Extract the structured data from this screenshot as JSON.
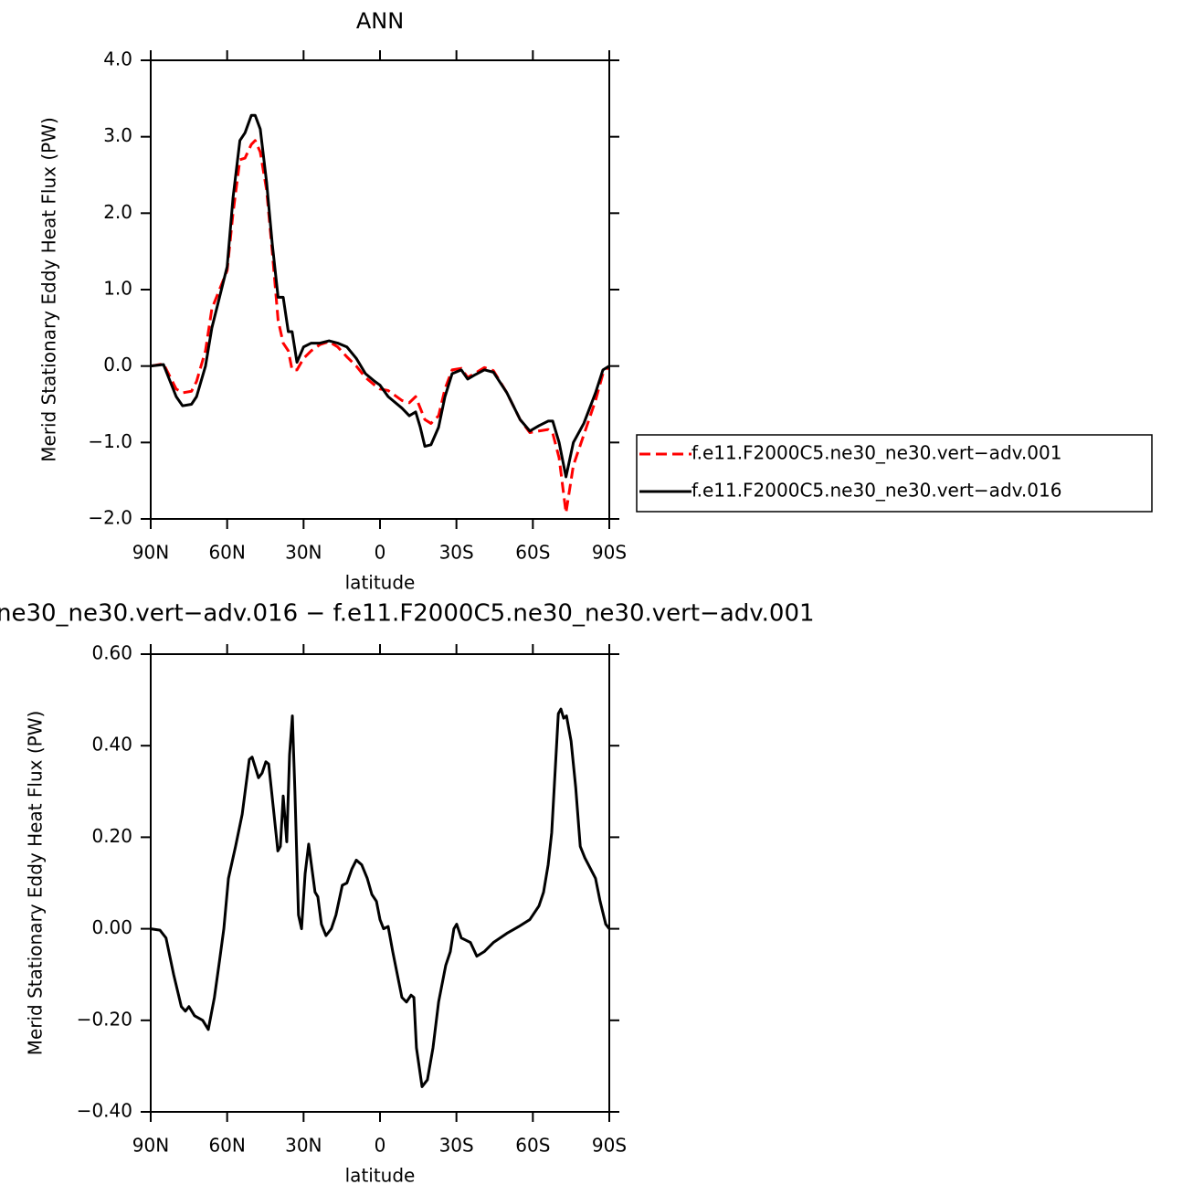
{
  "chart_data": [
    {
      "type": "line",
      "title": "ANN",
      "xlabel": "latitude",
      "ylabel": "Merid Stationary Eddy Heat Flux (PW)",
      "x": [
        90,
        85,
        80,
        77.5,
        74,
        72,
        68.5,
        66,
        63,
        60,
        57.7,
        55,
        53,
        50.5,
        49,
        47,
        44.5,
        42.3,
        40,
        38,
        36,
        34.5,
        32.6,
        30,
        27,
        23.6,
        20,
        16.6,
        13,
        9.3,
        5.7,
        2.1,
        0,
        -3.2,
        -8.6,
        -11.5,
        -14,
        -15.8,
        -17.6,
        -20,
        -23,
        -25.5,
        -28.3,
        -31.9,
        -34.4,
        -37,
        -41,
        -44.5,
        -49.8,
        -55,
        -58.8,
        -62.4,
        -66,
        -67.8,
        -70.3,
        -73,
        -75.9,
        -80,
        -84.6,
        -87.5,
        -90
      ],
      "xlim": [
        90,
        -90
      ],
      "xticks": [
        {
          "value": 90,
          "label": "90N"
        },
        {
          "value": 60,
          "label": "60N"
        },
        {
          "value": 30,
          "label": "30N"
        },
        0,
        {
          "value": -30,
          "label": "30S"
        },
        {
          "value": -60,
          "label": "60S"
        },
        {
          "value": -90,
          "label": "90S"
        }
      ],
      "ylim": [
        -2,
        4
      ],
      "yticks": [
        {
          "value": 4,
          "label": "4.0"
        },
        {
          "value": 3,
          "label": "3.0"
        },
        {
          "value": 2,
          "label": "2.0"
        },
        {
          "value": 1,
          "label": "1.0"
        },
        {
          "value": 0,
          "label": "0.0"
        },
        {
          "value": -1,
          "label": "−1.0"
        },
        {
          "value": -2,
          "label": "−2.0"
        }
      ],
      "legend": "right",
      "series": [
        {
          "name": "f.e11.F2000C5.ne30_ne30.vert−adv.001",
          "color": "#ff0000",
          "dash": "dashed",
          "values": [
            0,
            0.03,
            -0.3,
            -0.35,
            -0.33,
            -0.2,
            0.2,
            0.75,
            1.0,
            1.25,
            2.0,
            2.7,
            2.72,
            2.9,
            2.95,
            2.8,
            2.3,
            1.5,
            0.6,
            0.3,
            0.2,
            -0.05,
            -0.05,
            0.1,
            0.2,
            0.28,
            0.32,
            0.25,
            0.12,
            0.0,
            -0.15,
            -0.25,
            -0.3,
            -0.32,
            -0.45,
            -0.48,
            -0.4,
            -0.55,
            -0.7,
            -0.75,
            -0.65,
            -0.3,
            -0.05,
            -0.03,
            -0.15,
            -0.1,
            -0.02,
            -0.06,
            -0.35,
            -0.7,
            -0.87,
            -0.85,
            -0.83,
            -0.88,
            -1.2,
            -1.92,
            -1.3,
            -0.9,
            -0.45,
            -0.1,
            0
          ]
        },
        {
          "name": "f.e11.F2000C5.ne30_ne30.vert−adv.016",
          "color": "#000000",
          "values": [
            0,
            0.02,
            -0.4,
            -0.52,
            -0.5,
            -0.4,
            0,
            0.5,
            0.9,
            1.3,
            2.2,
            2.95,
            3.05,
            3.28,
            3.28,
            3.1,
            2.4,
            1.6,
            0.9,
            0.9,
            0.45,
            0.45,
            0.05,
            0.25,
            0.3,
            0.3,
            0.33,
            0.3,
            0.25,
            0.1,
            -0.1,
            -0.2,
            -0.25,
            -0.4,
            -0.55,
            -0.65,
            -0.6,
            -0.8,
            -1.05,
            -1.03,
            -0.8,
            -0.4,
            -0.1,
            -0.05,
            -0.17,
            -0.12,
            -0.05,
            -0.08,
            -0.35,
            -0.7,
            -0.85,
            -0.78,
            -0.72,
            -0.72,
            -1.0,
            -1.45,
            -1.0,
            -0.75,
            -0.35,
            -0.05,
            0
          ]
        }
      ]
    },
    {
      "type": "line",
      "title": "ne30_ne30.vert−adv.016 − f.e11.F2000C5.ne30_ne30.vert−adv.001",
      "xlabel": "latitude",
      "ylabel": "Merid Stationary Eddy Heat Flux (PW)",
      "x": [
        90,
        86.4,
        84,
        81,
        78,
        76.4,
        75,
        72.8,
        69.6,
        67.4,
        65,
        63,
        61.3,
        59.5,
        56.7,
        54.1,
        51.3,
        50.2,
        48.8,
        47.7,
        46.3,
        44.8,
        43.7,
        41.6,
        40.1,
        39.1,
        38,
        36.6,
        35.5,
        34.4,
        33.4,
        32,
        30.8,
        29.4,
        28,
        25.5,
        24.4,
        23,
        21.2,
        19.1,
        17.3,
        14.8,
        13,
        11.1,
        9.3,
        7.2,
        5,
        3.2,
        1.4,
        0,
        -1.4,
        -3.2,
        -5,
        -6.8,
        -8.6,
        -10.4,
        -12.2,
        -13.3,
        -14.3,
        -16.5,
        -18.6,
        -20.8,
        -23,
        -25.8,
        -27.6,
        -29,
        -30.1,
        -31.9,
        -35.5,
        -38,
        -40.9,
        -44.5,
        -49.8,
        -54.5,
        -58.8,
        -62.4,
        -64.2,
        -66,
        -67.4,
        -68.5,
        -70,
        -71,
        -72.1,
        -73.2,
        -75,
        -76.8,
        -78.6,
        -80.4,
        -83.2,
        -84.6,
        -86.4,
        -88.6,
        -90
      ],
      "xlim": [
        90,
        -90
      ],
      "xticks": [
        {
          "value": 90,
          "label": "90N"
        },
        {
          "value": 60,
          "label": "60N"
        },
        {
          "value": 30,
          "label": "30N"
        },
        0,
        {
          "value": -30,
          "label": "30S"
        },
        {
          "value": -60,
          "label": "60S"
        },
        {
          "value": -90,
          "label": "90S"
        }
      ],
      "ylim": [
        -0.4,
        0.6
      ],
      "yticks": [
        {
          "value": 0.6,
          "label": "0.60"
        },
        {
          "value": 0.4,
          "label": "0.40"
        },
        {
          "value": 0.2,
          "label": "0.20"
        },
        {
          "value": 0,
          "label": "0.00"
        },
        {
          "value": -0.2,
          "label": "−0.20"
        },
        {
          "value": -0.4,
          "label": "−0.40"
        }
      ],
      "series": [
        {
          "color": "#000000",
          "values": [
            0,
            -0.003,
            -0.02,
            -0.1,
            -0.17,
            -0.18,
            -0.17,
            -0.19,
            -0.2,
            -0.22,
            -0.15,
            -0.07,
            0,
            0.11,
            0.18,
            0.25,
            0.37,
            0.375,
            0.35,
            0.33,
            0.34,
            0.365,
            0.36,
            0.25,
            0.17,
            0.18,
            0.29,
            0.19,
            0.38,
            0.465,
            0.3,
            0.03,
            0.0,
            0.12,
            0.185,
            0.08,
            0.07,
            0.01,
            -0.015,
            0.0,
            0.03,
            0.095,
            0.1,
            0.13,
            0.15,
            0.14,
            0.11,
            0.075,
            0.06,
            0.02,
            0.0,
            0.005,
            -0.05,
            -0.1,
            -0.15,
            -0.16,
            -0.145,
            -0.15,
            -0.26,
            -0.345,
            -0.33,
            -0.26,
            -0.16,
            -0.08,
            -0.05,
            0.0,
            0.01,
            -0.02,
            -0.03,
            -0.06,
            -0.05,
            -0.03,
            -0.01,
            0.005,
            0.02,
            0.05,
            0.08,
            0.14,
            0.21,
            0.32,
            0.47,
            0.48,
            0.46,
            0.465,
            0.41,
            0.31,
            0.18,
            0.155,
            0.125,
            0.11,
            0.06,
            0.01,
            0
          ]
        }
      ]
    }
  ]
}
